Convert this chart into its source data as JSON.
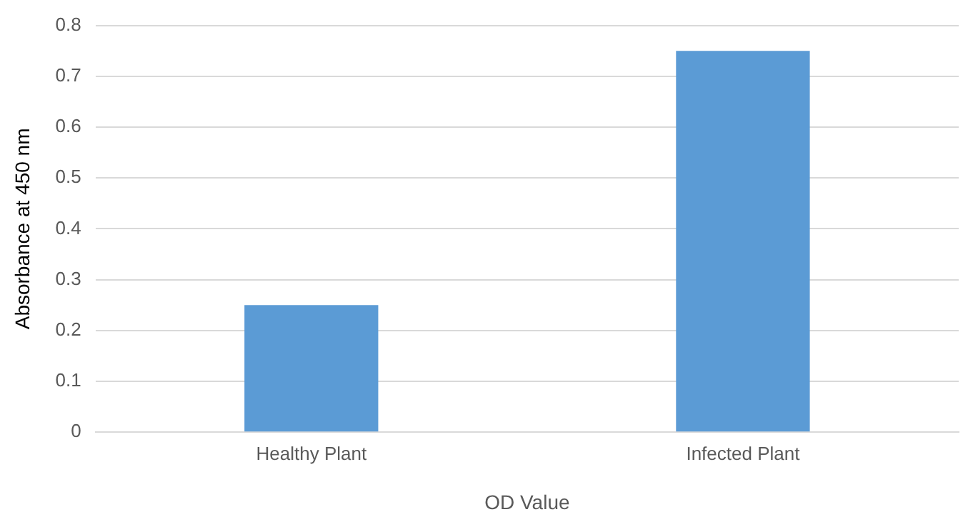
{
  "chart_data": {
    "type": "bar",
    "xlabel": "OD Value",
    "ylabel": "Absorbance at 450 nm",
    "categories": [
      "Healthy Plant",
      "Infected Plant"
    ],
    "series": [
      {
        "color": "#5b9bd5",
        "values": [
          0.25,
          0.75
        ]
      }
    ],
    "ylim": [
      0,
      0.8
    ],
    "yticks": [
      0,
      0.1,
      0.2,
      0.3,
      0.4,
      0.5,
      0.6,
      0.7,
      0.8
    ],
    "grid": "y",
    "legend": false
  }
}
